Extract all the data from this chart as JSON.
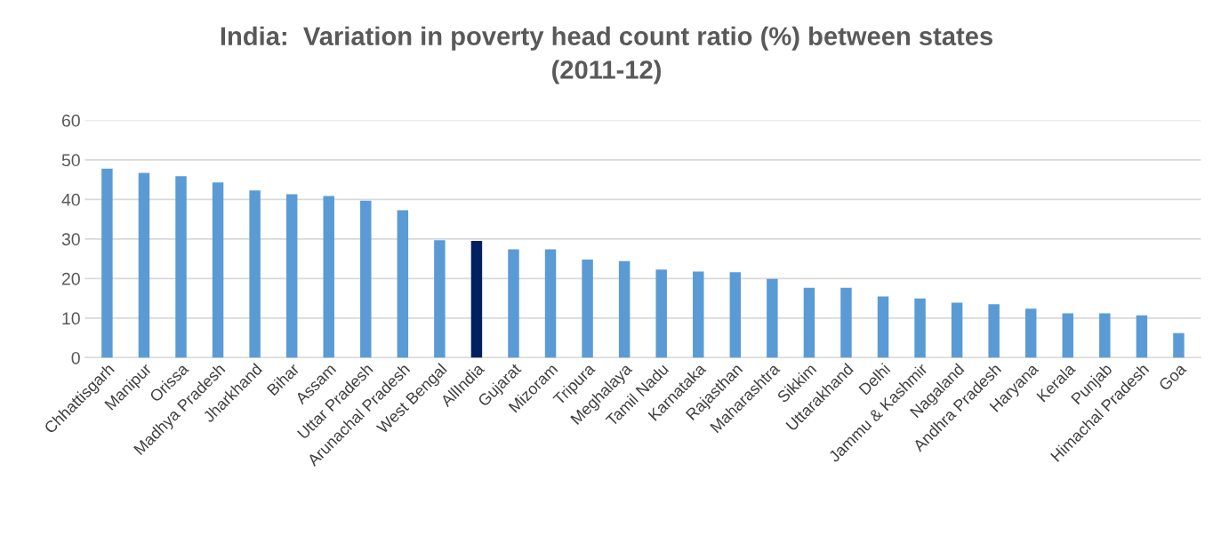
{
  "chart_data": {
    "type": "bar",
    "title": "India:  Variation in poverty head count ratio (%) between states\n(2011-12)",
    "categories": [
      "Chhattisgarh",
      "Manipur",
      "Orissa",
      "Madhya Pradesh",
      "Jharkhand",
      "Bihar",
      "Assam",
      "Uttar Pradesh",
      "Arunachal Pradesh",
      "West Bengal",
      "AllIndia",
      "Gujarat",
      "Mizoram",
      "Tripura",
      "Meghalaya",
      "Tamil Nadu",
      "Karnataka",
      "Rajasthan",
      "Maharashtra",
      "Sikkim",
      "Uttarakhand",
      "Delhi",
      "Jammu & Kashmir",
      "Nagaland",
      "Andhra Pradesh",
      "Haryana",
      "Kerala",
      "Punjab",
      "Himachal Pradesh",
      "Goa"
    ],
    "values": [
      47.8,
      46.7,
      45.9,
      44.3,
      42.3,
      41.3,
      40.9,
      39.7,
      37.3,
      29.7,
      29.5,
      27.4,
      27.4,
      24.8,
      24.4,
      22.3,
      21.8,
      21.6,
      19.9,
      17.7,
      17.7,
      15.5,
      15.0,
      13.9,
      13.5,
      12.4,
      11.2,
      11.2,
      10.7,
      6.2
    ],
    "colors": [
      "#5b9bd5",
      "#5b9bd5",
      "#5b9bd5",
      "#5b9bd5",
      "#5b9bd5",
      "#5b9bd5",
      "#5b9bd5",
      "#5b9bd5",
      "#5b9bd5",
      "#5b9bd5",
      "#002060",
      "#5b9bd5",
      "#5b9bd5",
      "#5b9bd5",
      "#5b9bd5",
      "#5b9bd5",
      "#5b9bd5",
      "#5b9bd5",
      "#5b9bd5",
      "#5b9bd5",
      "#5b9bd5",
      "#5b9bd5",
      "#5b9bd5",
      "#5b9bd5",
      "#5b9bd5",
      "#5b9bd5",
      "#5b9bd5",
      "#5b9bd5",
      "#5b9bd5",
      "#5b9bd5"
    ],
    "ylim": [
      0,
      60
    ],
    "yticks": [
      0,
      10,
      20,
      30,
      40,
      50,
      60
    ],
    "grid": "y",
    "legend": false
  }
}
